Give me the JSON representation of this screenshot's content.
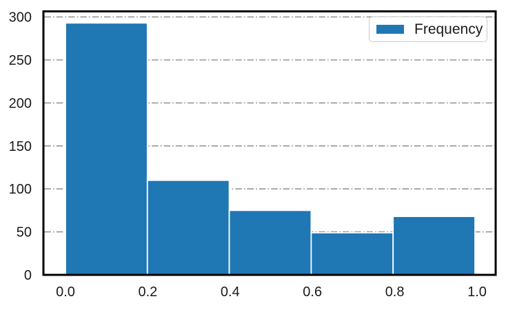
{
  "canvas": {
    "background": "#ffffff"
  },
  "chart_data": {
    "type": "bar",
    "subtype": "histogram",
    "title": "",
    "xlabel": "",
    "ylabel": "",
    "legend": [
      "Frequency"
    ],
    "legend_position": "upper right",
    "bin_edges": [
      0.0,
      0.199,
      0.398,
      0.597,
      0.796,
      0.995
    ],
    "values": [
      293,
      110,
      75,
      49,
      68
    ],
    "xtick_values": [
      0.0,
      0.2,
      0.4,
      0.6,
      0.8,
      1.0
    ],
    "xtick_labels": [
      "0.0",
      "0.2",
      "0.4",
      "0.6",
      "0.8",
      "1.0"
    ],
    "ytick_values": [
      0,
      50,
      100,
      150,
      200,
      250,
      300
    ],
    "ytick_labels": [
      "0",
      "50",
      "100",
      "150",
      "200",
      "250",
      "300"
    ],
    "xlim": [
      -0.05,
      1.045
    ],
    "ylim": [
      0,
      306
    ],
    "grid": {
      "axis": "y",
      "linestyle": "dash-dot",
      "color": "#969696"
    },
    "colors": {
      "bar_fill": "#1f77b4",
      "bar_edge": "#ffffff",
      "frame": "#000000",
      "tick_text": "#1a1a1a",
      "legend_border": "#cbcbcb"
    }
  }
}
